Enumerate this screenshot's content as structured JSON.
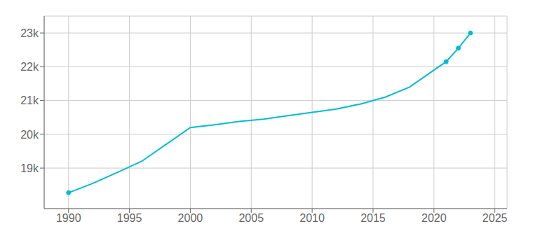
{
  "chart_data": {
    "type": "line",
    "x": [
      1990,
      1992,
      1994,
      1996,
      1998,
      2000,
      2002,
      2004,
      2006,
      2008,
      2010,
      2012,
      2014,
      2016,
      2018,
      2020,
      2021,
      2022,
      2023
    ],
    "values": [
      18270,
      18550,
      18870,
      19200,
      19700,
      20200,
      20280,
      20380,
      20450,
      20550,
      20650,
      20750,
      20900,
      21100,
      21400,
      21900,
      22150,
      22550,
      23000
    ],
    "color": "#00BCD4",
    "marker": "o",
    "xlim": [
      1988,
      2026
    ],
    "ylim": [
      17800,
      23500
    ],
    "xticks": [
      1990,
      1995,
      2000,
      2005,
      2010,
      2015,
      2020,
      2025
    ],
    "yticks": [
      {
        "value": 19000,
        "label": "19k"
      },
      {
        "value": 20000,
        "label": "20k"
      },
      {
        "value": 21000,
        "label": "21k"
      },
      {
        "value": 22000,
        "label": "22k"
      },
      {
        "value": 23000,
        "label": "23k"
      }
    ],
    "grid": true
  }
}
